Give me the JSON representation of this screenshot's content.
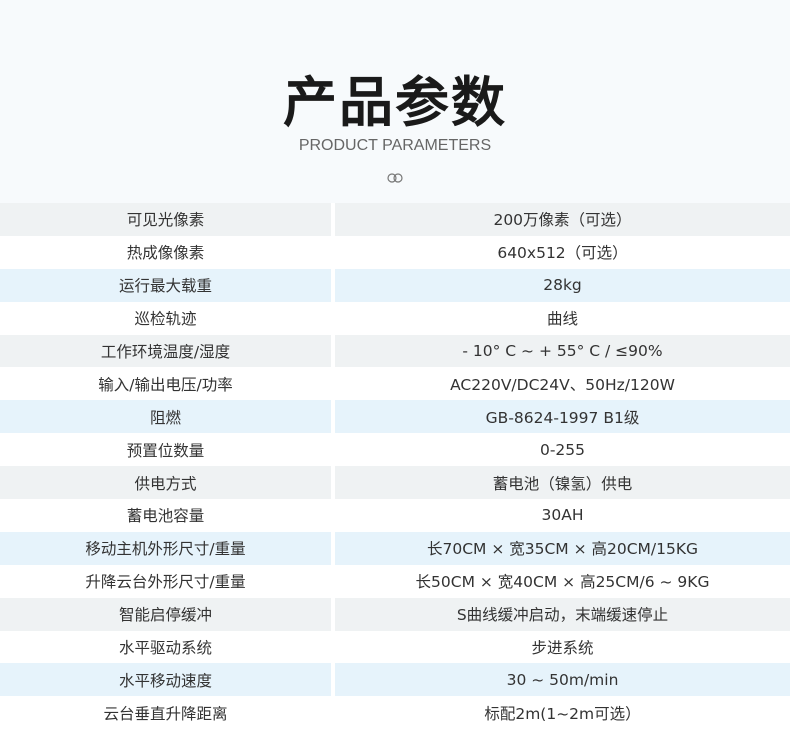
{
  "header": {
    "title": "产品参数",
    "subtitle": "PRODUCT PARAMETERS",
    "ornament_icon": "double-ring-icon"
  },
  "colors": {
    "row_grey": "#eff2f3",
    "row_blue": "#e6f3fb",
    "header_bg": "#f7fafc"
  },
  "params": [
    {
      "label": "可见光像素",
      "value": "200万像素（可选）"
    },
    {
      "label": "热成像像素",
      "value": "640x512（可选）"
    },
    {
      "label": "运行最大载重",
      "value": "28kg"
    },
    {
      "label": "巡检轨迹",
      "value": "曲线"
    },
    {
      "label": "工作环境温度/湿度",
      "value": "- 10°  C ~ + 55°  C / ≤90%"
    },
    {
      "label": "输入/输出电压/功率",
      "value": "AC220V/DC24V、50Hz/120W"
    },
    {
      "label": "阻燃",
      "value": "GB-8624-1997 B1级"
    },
    {
      "label": "预置位数量",
      "value": "0-255"
    },
    {
      "label": "供电方式",
      "value": "蓄电池（镍氢）供电"
    },
    {
      "label": "蓄电池容量",
      "value": "30AH"
    },
    {
      "label": "移动主机外形尺寸/重量",
      "value": "长70CM × 宽35CM × 高20CM/15KG"
    },
    {
      "label": "升降云台外形尺寸/重量",
      "value": "长50CM × 宽40CM × 高25CM/6 ~ 9KG"
    },
    {
      "label": "智能启停缓冲",
      "value": "S曲线缓冲启动，末端缓速停止"
    },
    {
      "label": "水平驱动系统",
      "value": "步进系统"
    },
    {
      "label": "水平移动速度",
      "value": "30 ~ 50m/min"
    },
    {
      "label": "云台垂直升降距离",
      "value": "标配2m(1~2m可选）"
    }
  ]
}
